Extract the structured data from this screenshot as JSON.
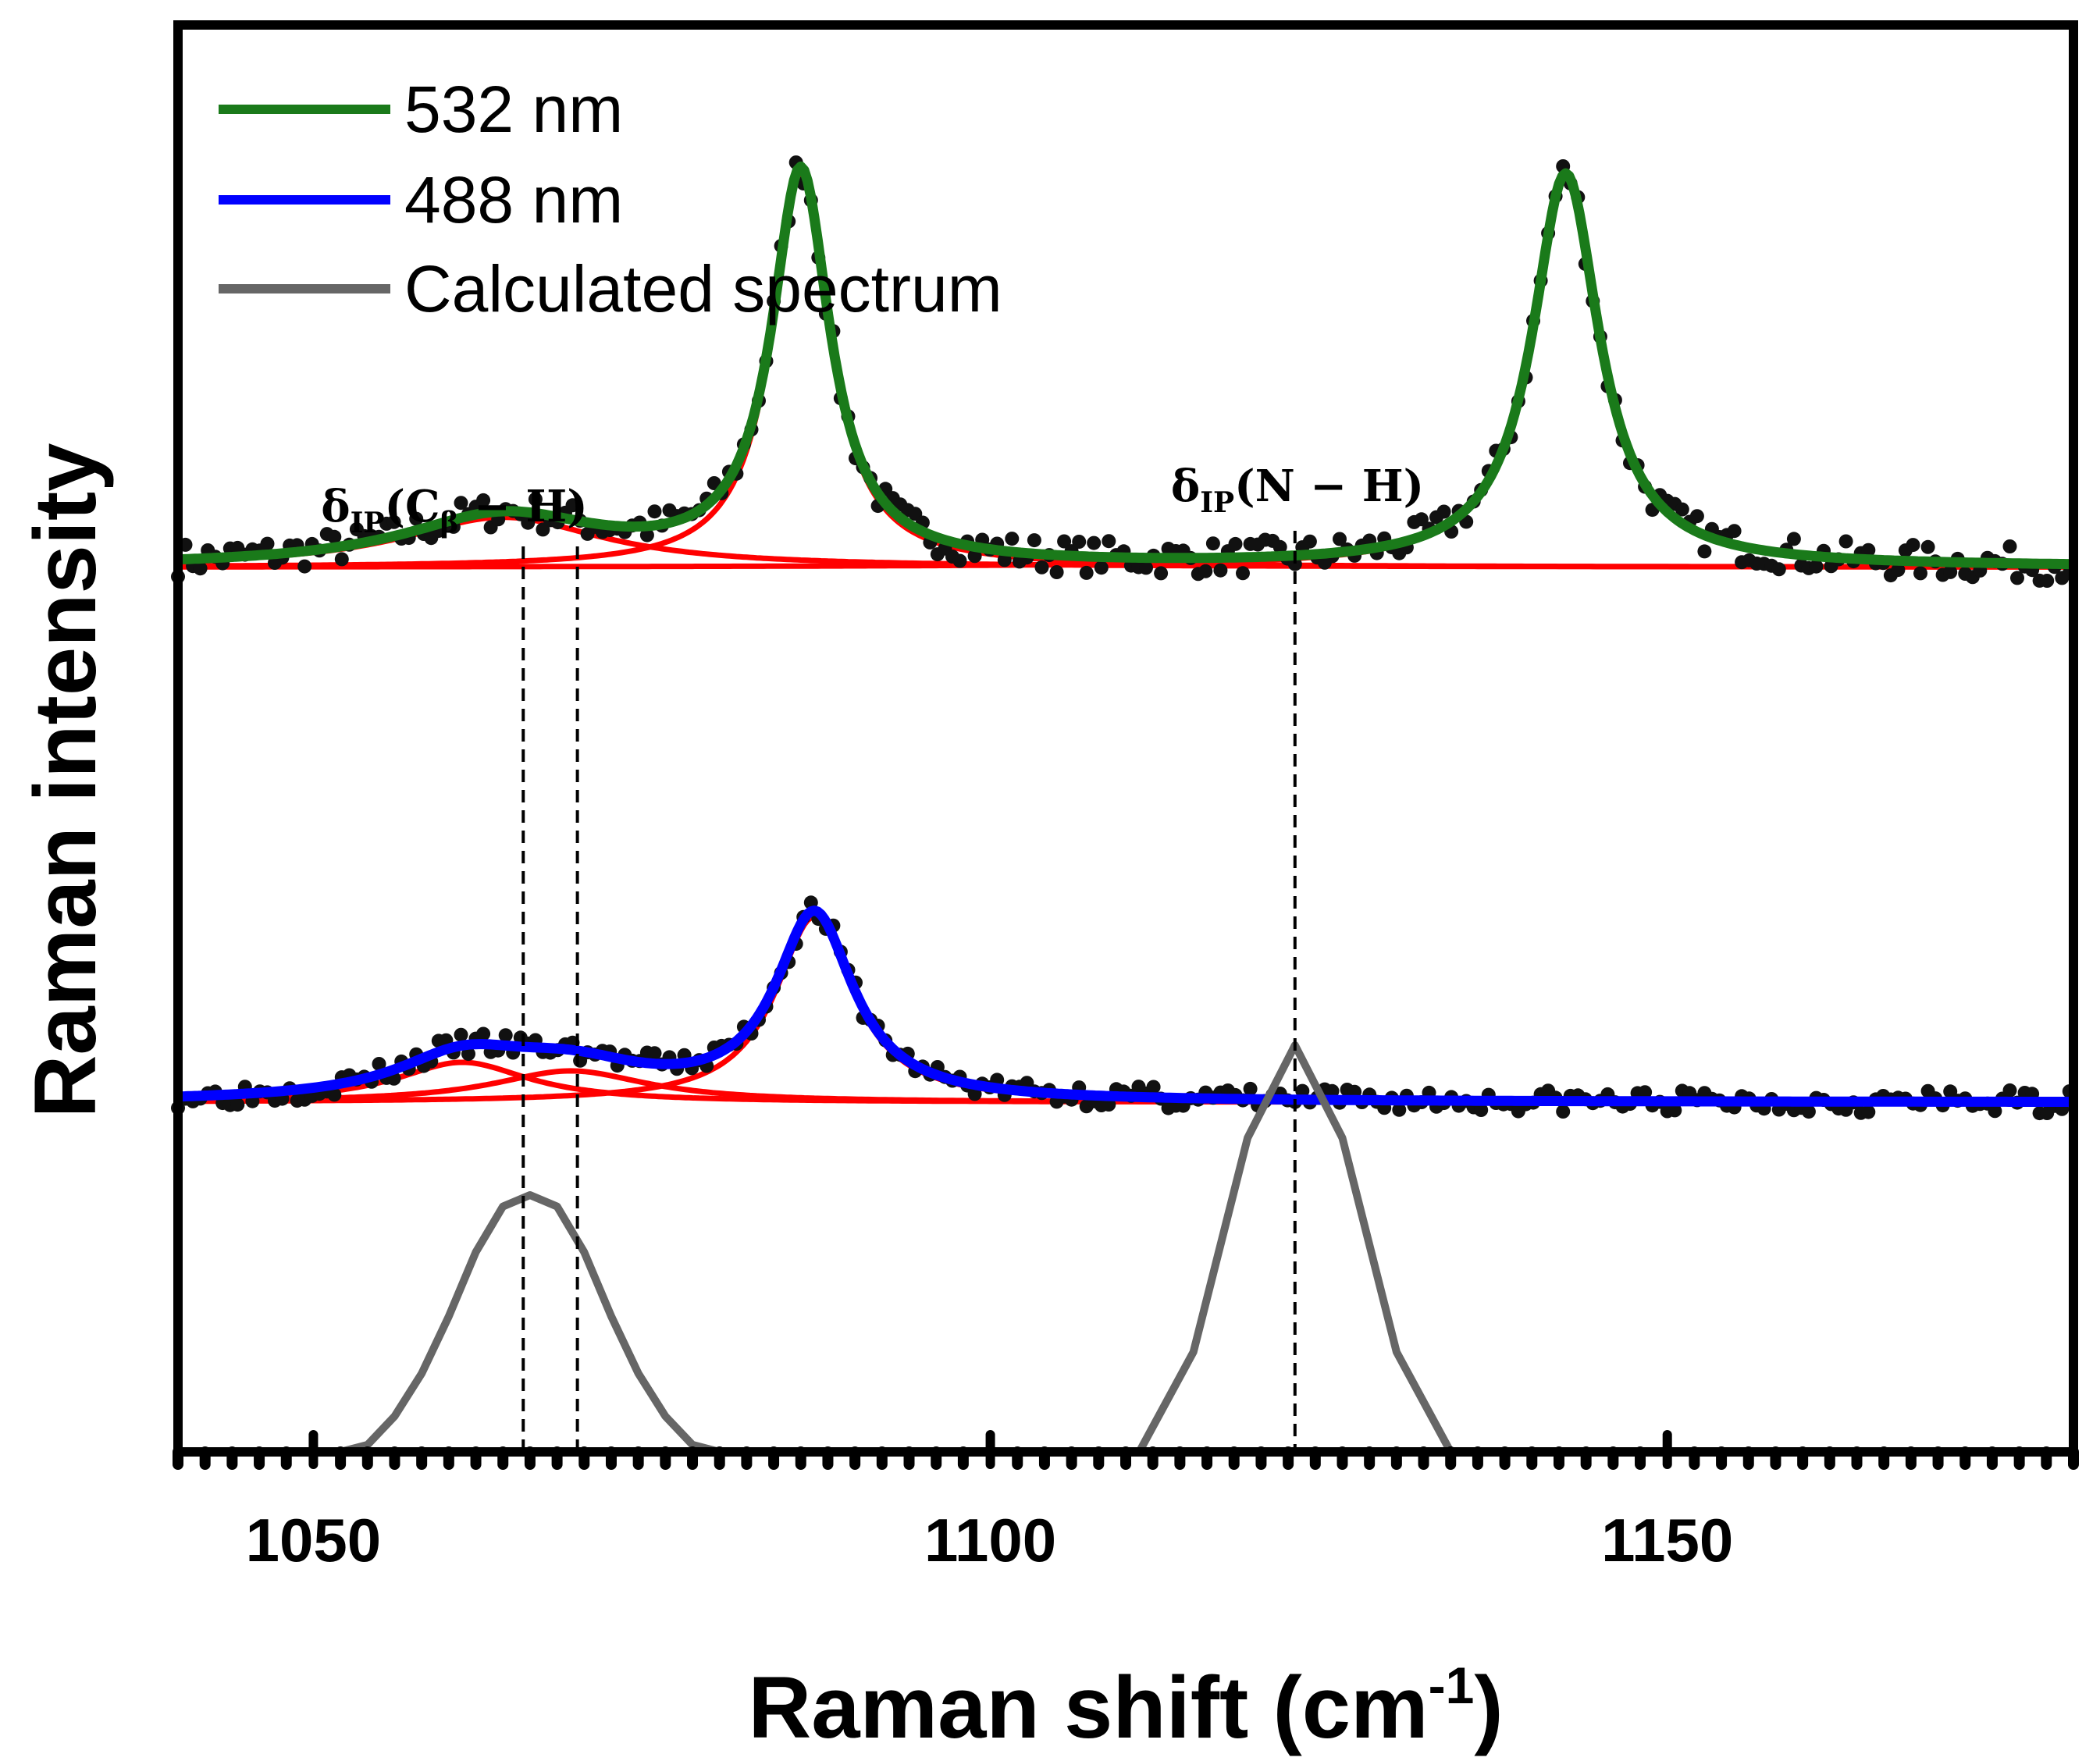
{
  "chart_data": {
    "type": "line",
    "title": "",
    "xlabel": "Raman shift (cm",
    "xlabel_sup": "-1",
    "xlabel_close": ")",
    "ylabel": "Raman intensity",
    "xlim": [
      1040,
      1180
    ],
    "ylim": [
      0,
      10
    ],
    "x_ticks": [
      1050,
      1100,
      1150
    ],
    "x_tick_labels": [
      "1050",
      "1100",
      "1150"
    ],
    "x_minor_step": 2,
    "grid": false,
    "legend_position": "top-left",
    "legend": [
      {
        "label": "532 nm",
        "color": "#1a7a1a"
      },
      {
        "label": "488 nm",
        "color": "#0000ff"
      },
      {
        "label": "Calculated spectrum",
        "color": "#666666"
      }
    ],
    "colors": {
      "green": "#1a7a1a",
      "blue": "#0000ff",
      "gray": "#666666",
      "fit": "#ff0000",
      "points": "#111111"
    },
    "annotations": [
      {
        "base": "δ",
        "sub": "IP",
        "open": "(",
        "sym": "C",
        "symsub": "β",
        "rest": " − H)",
        "x": 1066.5
      },
      {
        "base": "δ",
        "sub": "IP",
        "open": "(",
        "sym": "N",
        "symsub": "",
        "rest": " − H)",
        "x": 1122.5
      }
    ],
    "reference_lines_x": [
      1065.5,
      1069.5,
      1122.5
    ],
    "series": [
      {
        "name": "532 nm",
        "offset": 6.2,
        "color": "#1a7a1a",
        "noise": 0.12,
        "seed": 7,
        "components": [
          {
            "center": 1064,
            "amplitude": 0.35,
            "width": 9
          },
          {
            "center": 1086,
            "amplitude": 2.75,
            "width": 2.6
          },
          {
            "center": 1142.5,
            "amplitude": 2.75,
            "width": 3.0
          }
        ]
      },
      {
        "name": "488 nm",
        "offset": 2.45,
        "color": "#0000ff",
        "noise": 0.08,
        "seed": 3,
        "components": [
          {
            "center": 1061,
            "amplitude": 0.28,
            "width": 6
          },
          {
            "center": 1069,
            "amplitude": 0.22,
            "width": 7
          },
          {
            "center": 1087,
            "amplitude": 1.3,
            "width": 3.5
          }
        ]
      }
    ],
    "calculated_spectrum": {
      "name": "Calculated spectrum",
      "color": "#666666",
      "x": [
        1052,
        1054,
        1056,
        1058,
        1060,
        1062,
        1064,
        1066,
        1068,
        1070,
        1072,
        1074,
        1076,
        1078,
        1080,
        1111,
        1115,
        1119,
        1122.5,
        1126,
        1130,
        1134
      ],
      "y": [
        0,
        0.05,
        0.25,
        0.55,
        0.95,
        1.4,
        1.72,
        1.8,
        1.72,
        1.4,
        0.95,
        0.55,
        0.25,
        0.05,
        0,
        0,
        0.7,
        2.2,
        2.85,
        2.2,
        0.7,
        0
      ]
    }
  }
}
